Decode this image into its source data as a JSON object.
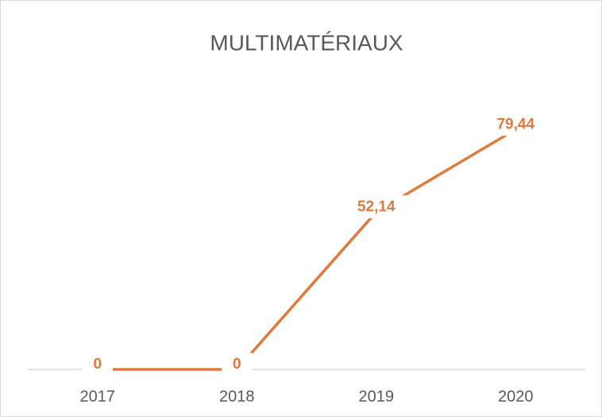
{
  "chart_data": {
    "type": "line",
    "title": "MULTIMATÉRIAUX",
    "categories": [
      "2017",
      "2018",
      "2019",
      "2020"
    ],
    "series": [
      {
        "name": "MULTIMATÉRIAUX",
        "color": "#e07a3c",
        "values": [
          0,
          0,
          52.14,
          79.44
        ],
        "value_labels": [
          "0",
          "0",
          "52,14",
          "79,44"
        ]
      }
    ],
    "ylim": [
      0,
      90
    ]
  }
}
